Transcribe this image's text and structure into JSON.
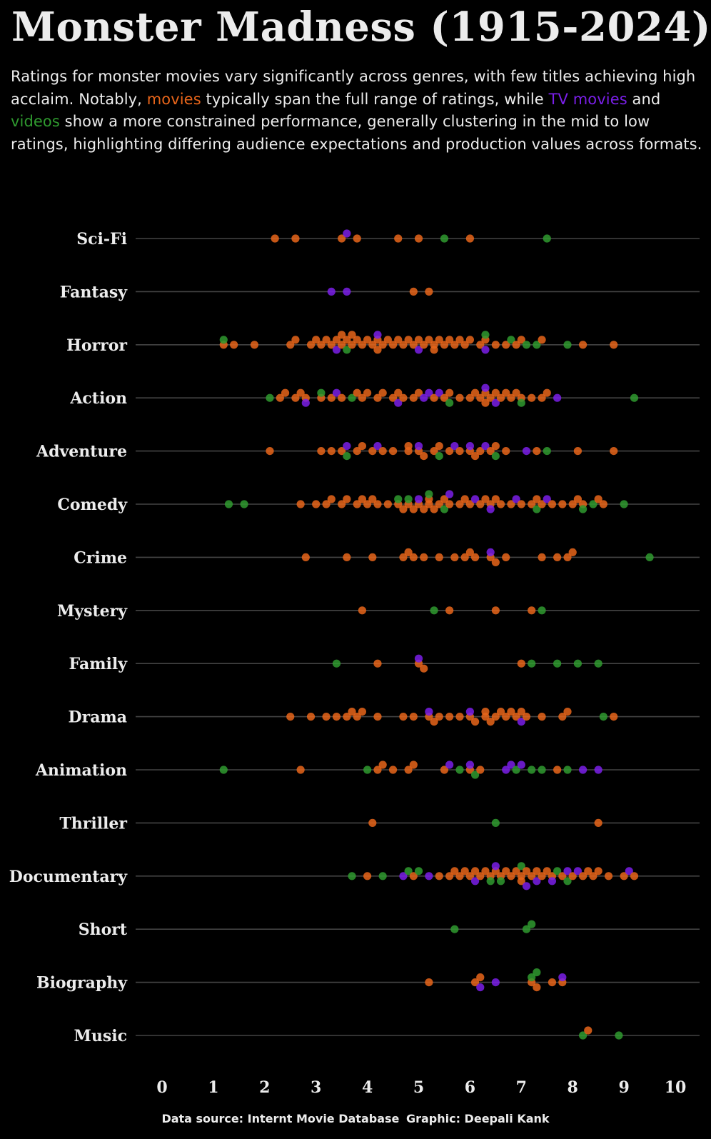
{
  "colors": {
    "background": "#000000",
    "text": "#ececec",
    "grid": "#444444",
    "movie": "#e8651a",
    "tv_movie": "#7a1fe8",
    "video": "#2f9a2f"
  },
  "subtitle": {
    "part1": "Ratings for monster movies vary significantly across genres, with few titles achieving high acclaim. Notably, ",
    "movies": "movies",
    "part2": " typically span the full range of ratings, while ",
    "tv_movies": "TV movies",
    "part3": " and ",
    "videos": "videos",
    "part4": " show a more constrained performance, generally clustering in the mid to low ratings, highlighting differing audience expectations and production values across formats."
  },
  "caption": {
    "source": "Data source: Internt Movie Database",
    "graphic": "Graphic: Deepali Kank"
  },
  "chart_data": {
    "type": "scatter",
    "title": "Monster Madness (1915-2024)",
    "xlabel": "",
    "ylabel": "",
    "xlim": [
      0,
      10
    ],
    "x_ticks": [
      "0",
      "1",
      "2",
      "3",
      "4",
      "5",
      "6",
      "7",
      "8",
      "9",
      "10"
    ],
    "grid": "horizontal lines per category",
    "legend": "none (colors named in subtitle)",
    "categories": [
      "Sci-Fi",
      "Fantasy",
      "Horror",
      "Action",
      "Adventure",
      "Comedy",
      "Crime",
      "Mystery",
      "Family",
      "Drama",
      "Animation",
      "Thriller",
      "Documentary",
      "Short",
      "Biography",
      "Music"
    ],
    "series": [
      {
        "type_key": "movie",
        "points": {
          "Sci-Fi": [
            2.2,
            2.6,
            3.5,
            3.8,
            4.6,
            5.0,
            6.0
          ],
          "Fantasy": [
            4.9,
            5.2
          ],
          "Horror": [
            1.2,
            1.4,
            1.8,
            2.5,
            2.6,
            2.9,
            3.0,
            3.1,
            3.2,
            3.3,
            3.4,
            3.5,
            3.5,
            3.6,
            3.7,
            3.7,
            3.8,
            3.9,
            4.0,
            4.1,
            4.2,
            4.2,
            4.3,
            4.4,
            4.5,
            4.6,
            4.7,
            4.8,
            4.9,
            5.0,
            5.1,
            5.2,
            5.3,
            5.3,
            5.4,
            5.5,
            5.6,
            5.7,
            5.8,
            5.9,
            6.0,
            6.2,
            6.3,
            6.5,
            6.7,
            6.9,
            7.0,
            7.4,
            8.2,
            8.8
          ],
          "Action": [
            2.3,
            2.4,
            2.6,
            2.7,
            2.8,
            3.1,
            3.3,
            3.5,
            3.8,
            3.9,
            4.0,
            4.2,
            4.3,
            4.5,
            4.6,
            4.7,
            4.9,
            5.0,
            5.3,
            5.5,
            5.6,
            5.8,
            6.0,
            6.1,
            6.2,
            6.3,
            6.3,
            6.4,
            6.5,
            6.6,
            6.7,
            6.8,
            6.9,
            7.0,
            7.2,
            7.4,
            7.5
          ],
          "Adventure": [
            2.1,
            3.1,
            3.3,
            3.5,
            3.8,
            3.9,
            4.1,
            4.3,
            4.5,
            4.8,
            4.8,
            5.0,
            5.1,
            5.3,
            5.4,
            5.6,
            5.8,
            6.0,
            6.1,
            6.2,
            6.4,
            6.5,
            6.7,
            7.3,
            8.1,
            8.8
          ],
          "Comedy": [
            2.7,
            3.0,
            3.2,
            3.3,
            3.5,
            3.6,
            3.8,
            3.9,
            4.0,
            4.1,
            4.2,
            4.4,
            4.6,
            4.7,
            4.8,
            4.9,
            5.0,
            5.1,
            5.2,
            5.2,
            5.3,
            5.4,
            5.5,
            5.6,
            5.8,
            5.9,
            6.0,
            6.2,
            6.3,
            6.4,
            6.5,
            6.6,
            6.8,
            7.0,
            7.2,
            7.3,
            7.4,
            7.6,
            7.8,
            8.0,
            8.1,
            8.2,
            8.5,
            8.6
          ],
          "Crime": [
            2.8,
            3.6,
            4.1,
            4.7,
            4.8,
            4.9,
            5.1,
            5.4,
            5.7,
            5.9,
            6.0,
            6.1,
            6.4,
            6.5,
            6.7,
            7.4,
            7.7,
            7.9,
            8.0
          ],
          "Mystery": [
            3.9,
            5.6,
            6.5,
            7.2
          ],
          "Family": [
            4.2,
            5.0,
            5.1,
            7.0
          ],
          "Drama": [
            2.5,
            2.9,
            3.2,
            3.4,
            3.6,
            3.7,
            3.8,
            3.9,
            4.2,
            4.7,
            4.9,
            5.2,
            5.3,
            5.4,
            5.6,
            5.8,
            6.0,
            6.1,
            6.3,
            6.3,
            6.4,
            6.5,
            6.6,
            6.7,
            6.8,
            6.9,
            7.0,
            7.1,
            7.4,
            7.8,
            7.9,
            8.8
          ],
          "Animation": [
            2.7,
            4.2,
            4.3,
            4.5,
            4.8,
            4.9,
            5.5,
            6.0,
            6.2,
            7.7
          ],
          "Thriller": [
            4.1,
            8.5
          ],
          "Documentary": [
            4.0,
            4.9,
            5.4,
            5.6,
            5.7,
            5.8,
            5.9,
            6.0,
            6.1,
            6.2,
            6.3,
            6.4,
            6.5,
            6.6,
            6.7,
            6.8,
            6.9,
            7.0,
            7.0,
            7.1,
            7.2,
            7.3,
            7.4,
            7.5,
            7.6,
            7.8,
            8.0,
            8.2,
            8.3,
            8.4,
            8.5,
            8.7,
            9.0,
            9.2
          ],
          "Short": [],
          "Biography": [
            5.2,
            6.1,
            6.2,
            7.2,
            7.3,
            7.6,
            7.8
          ],
          "Music": [
            8.3
          ]
        }
      },
      {
        "type_key": "tv_movie",
        "points": {
          "Sci-Fi": [
            3.6
          ],
          "Fantasy": [
            3.3,
            3.6
          ],
          "Horror": [
            3.4,
            4.2,
            5.0,
            6.3
          ],
          "Action": [
            2.8,
            3.4,
            4.6,
            5.1,
            5.2,
            5.4,
            6.3,
            6.5,
            7.7
          ],
          "Adventure": [
            3.6,
            4.2,
            5.0,
            5.7,
            6.0,
            6.3,
            7.1
          ],
          "Comedy": [
            5.0,
            5.6,
            6.1,
            6.4,
            6.9,
            7.5
          ],
          "Crime": [
            6.4
          ],
          "Mystery": [],
          "Family": [
            5.0
          ],
          "Drama": [
            5.2,
            6.0,
            7.0
          ],
          "Animation": [
            5.6,
            6.0,
            6.7,
            6.8,
            7.0,
            8.2,
            8.5
          ],
          "Thriller": [],
          "Documentary": [
            4.7,
            5.2,
            6.1,
            6.5,
            7.1,
            7.3,
            7.6,
            7.9,
            8.1,
            9.1
          ],
          "Short": [],
          "Biography": [
            6.2,
            6.5,
            7.8
          ],
          "Music": []
        }
      },
      {
        "type_key": "video",
        "points": {
          "Sci-Fi": [
            5.5,
            7.5
          ],
          "Fantasy": [],
          "Horror": [
            1.2,
            3.6,
            6.3,
            6.8,
            7.1,
            7.3,
            7.9
          ],
          "Action": [
            2.1,
            3.1,
            3.7,
            5.6,
            7.0,
            9.2
          ],
          "Adventure": [
            3.6,
            5.4,
            6.5,
            7.5
          ],
          "Comedy": [
            1.3,
            1.6,
            4.6,
            4.8,
            5.2,
            5.5,
            7.3,
            8.2,
            8.4,
            9.0
          ],
          "Crime": [
            9.5
          ],
          "Mystery": [
            5.3,
            7.4
          ],
          "Family": [
            3.4,
            7.2,
            7.7,
            8.1,
            8.5
          ],
          "Drama": [
            8.6
          ],
          "Animation": [
            1.2,
            4.0,
            5.8,
            6.1,
            6.9,
            7.2,
            7.4,
            7.9
          ],
          "Thriller": [
            6.5
          ],
          "Documentary": [
            3.7,
            4.3,
            4.8,
            5.0,
            6.4,
            6.6,
            7.0,
            7.7,
            7.9
          ],
          "Short": [
            5.7,
            7.1,
            7.2
          ],
          "Biography": [
            7.2,
            7.3
          ],
          "Music": [
            8.2,
            8.9
          ]
        }
      }
    ]
  }
}
